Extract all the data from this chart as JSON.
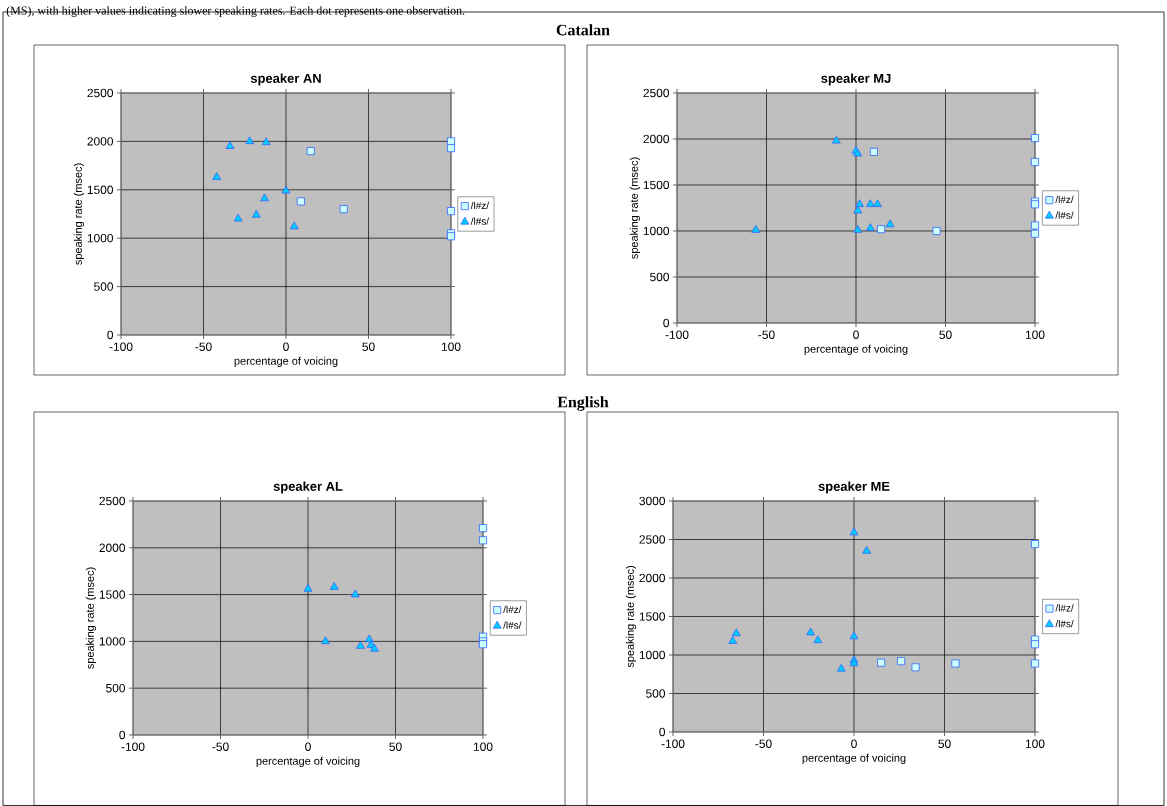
{
  "chart_data": [
    {
      "type": "scatter",
      "title": "speaker AN",
      "xlabel": "percentage of voicing",
      "ylabel": "speaking rate (msec)",
      "annotations": [
        "(MS), with higher values indicating slower speaking rates. Each dot represents one observation.",
        "Catalan"
      ],
      "xlim": [
        -100,
        100
      ],
      "xticks": [
        -100,
        -50,
        0,
        50,
        100
      ],
      "ylim": [
        0,
        2500
      ],
      "yticks": [
        0,
        500,
        1000,
        1500,
        2000,
        2500
      ],
      "grid": true,
      "legend": "right",
      "series": [
        {
          "name": "/l#z/",
          "color": "#ccffff",
          "marker": "square",
          "x": [
            15,
            9,
            35,
            100,
            100,
            100,
            100,
            100
          ],
          "values": [
            1900,
            1380,
            1300,
            2000,
            1930,
            1280,
            1050,
            1020
          ]
        },
        {
          "name": "/l#s/",
          "color": "#00ccff",
          "marker": "triangle",
          "x": [
            -34,
            -22,
            -12,
            -42,
            0,
            -13,
            -29,
            -18,
            5
          ],
          "values": [
            1950,
            2000,
            1990,
            1630,
            1490,
            1410,
            1200,
            1240,
            1120
          ]
        }
      ]
    },
    {
      "type": "scatter",
      "title": "speaker MJ",
      "xlabel": "percentage of voicing",
      "ylabel": "speaking rate (msec)",
      "xlim": [
        -100,
        100
      ],
      "xticks": [
        -100,
        -50,
        0,
        50,
        100
      ],
      "ylim": [
        0,
        2500
      ],
      "yticks": [
        0,
        500,
        1000,
        1500,
        2000,
        2500
      ],
      "grid": true,
      "legend": "right",
      "series": [
        {
          "name": "/l#z/",
          "color": "#ccffff",
          "marker": "square",
          "x": [
            10,
            14,
            45,
            100,
            100,
            100,
            100,
            100,
            100
          ],
          "values": [
            1860,
            1020,
            1000,
            2010,
            1750,
            1320,
            1290,
            1060,
            970
          ]
        },
        {
          "name": "/l#s/",
          "color": "#00ccff",
          "marker": "triangle",
          "x": [
            -11,
            0,
            1,
            2,
            8,
            12,
            1,
            -56,
            1,
            8,
            19
          ],
          "values": [
            1980,
            1870,
            1840,
            1290,
            1290,
            1290,
            1220,
            1010,
            1010,
            1030,
            1070
          ]
        }
      ]
    },
    {
      "type": "scatter",
      "title": "speaker AL",
      "xlabel": "percentage of voicing",
      "ylabel": "speaking rate (msec)",
      "annotations": [
        "English"
      ],
      "xlim": [
        -100,
        100
      ],
      "xticks": [
        -100,
        -50,
        0,
        50,
        100
      ],
      "ylim": [
        0,
        2500
      ],
      "yticks": [
        0,
        500,
        1000,
        1500,
        2000,
        2500
      ],
      "grid": true,
      "legend": "right",
      "series": [
        {
          "name": "/l#z/",
          "color": "#ccffff",
          "marker": "square",
          "x": [
            100,
            100,
            100,
            100,
            100
          ],
          "values": [
            2210,
            2080,
            1050,
            1000,
            970
          ]
        },
        {
          "name": "/l#s/",
          "color": "#00ccff",
          "marker": "triangle",
          "x": [
            0,
            15,
            27,
            10,
            30,
            35,
            36,
            38
          ],
          "values": [
            1560,
            1580,
            1500,
            1000,
            950,
            1020,
            960,
            920
          ]
        }
      ]
    },
    {
      "type": "scatter",
      "title": "speaker ME",
      "xlabel": "percentage of voicing",
      "ylabel": "speaking rate (msec)",
      "xlim": [
        -100,
        100
      ],
      "xticks": [
        -100,
        -50,
        0,
        50,
        100
      ],
      "ylim": [
        0,
        3000
      ],
      "yticks": [
        0,
        500,
        1000,
        1500,
        2000,
        2500,
        3000
      ],
      "grid": true,
      "legend": "right",
      "series": [
        {
          "name": "/l#z/",
          "color": "#ccffff",
          "marker": "square",
          "x": [
            15,
            26,
            34,
            56,
            100,
            100,
            100,
            100
          ],
          "values": [
            900,
            920,
            840,
            890,
            2440,
            1200,
            1140,
            890
          ]
        },
        {
          "name": "/l#s/",
          "color": "#00ccff",
          "marker": "triangle",
          "x": [
            0,
            7,
            -65,
            -67,
            -24,
            -20,
            0,
            0,
            0,
            -7
          ],
          "values": [
            2590,
            2350,
            1280,
            1180,
            1290,
            1190,
            1240,
            930,
            890,
            820
          ]
        }
      ]
    }
  ]
}
